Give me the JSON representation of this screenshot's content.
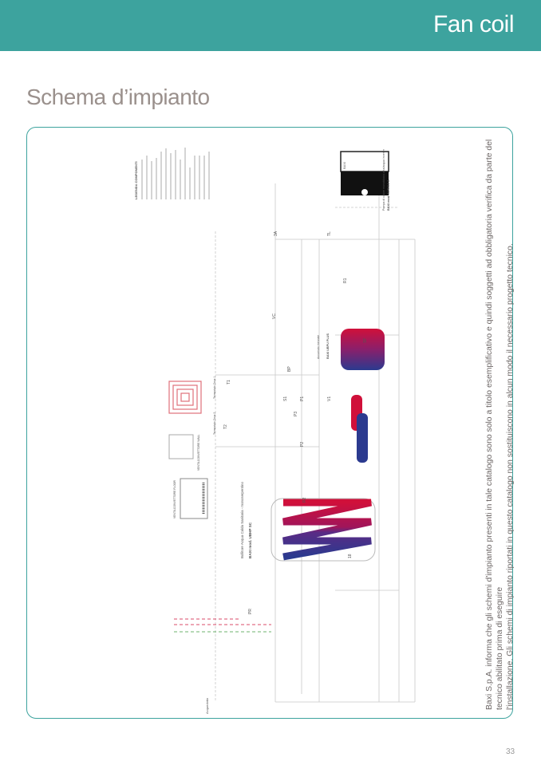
{
  "header": {
    "section_title": "Fan coil"
  },
  "page": {
    "title": "Schema d’impianto",
    "number": "33"
  },
  "diagram": {
    "legend_title": "LEGENDA COMPONENTI",
    "labels": {
      "storage_tank": "Bollitore Acqua Calda Sanitaria - monoserpentino",
      "storage_tank_model": "BAXI mod. UBHP SC",
      "buffer_tank": "Accumulo inerziale",
      "buffer_tank_model": "BAXI UBPU PLUS",
      "heat_pump": "Pompa di calore monoblocco aria/acqua inverter",
      "heat_pump_model": "BAXI mod. AURIGA A",
      "heat_pump_brand": "BAXI",
      "fancoil_floor": "VENTILCONVETTORE FLOOR",
      "fancoil_wall": "VENTILCONVETTORE WALL",
      "thermostat_zone1": "Termostato Zona 1",
      "thermostat_zone2": "Termostato Zona 2",
      "water_mains": "Acquedotto",
      "codes": [
        "T1",
        "T2",
        "P1",
        "P2",
        "P3",
        "V1",
        "S1",
        "R2",
        "18",
        "VC",
        "R1",
        "SF",
        "PR",
        "3A",
        "TL",
        "BP"
      ]
    }
  },
  "disclaimer": {
    "line1": "Baxi S.p.A. informa che gli schemi d'impianto presenti in tale catalogo sono solo a titolo esemplificativo e quindi soggetti ad obbligatoria verifica da parte del tecnico abilitato prima di eseguire",
    "line2": "l'installazione. Gli schemi di impianto riportati in questo catalogo non sostituiscono in alcun modo il necessario progetto tecnico."
  },
  "colors": {
    "brand_teal": "#3da39e",
    "title_grey": "#9a908c",
    "hot": "#d0103a",
    "cold": "#2b3a8f"
  }
}
